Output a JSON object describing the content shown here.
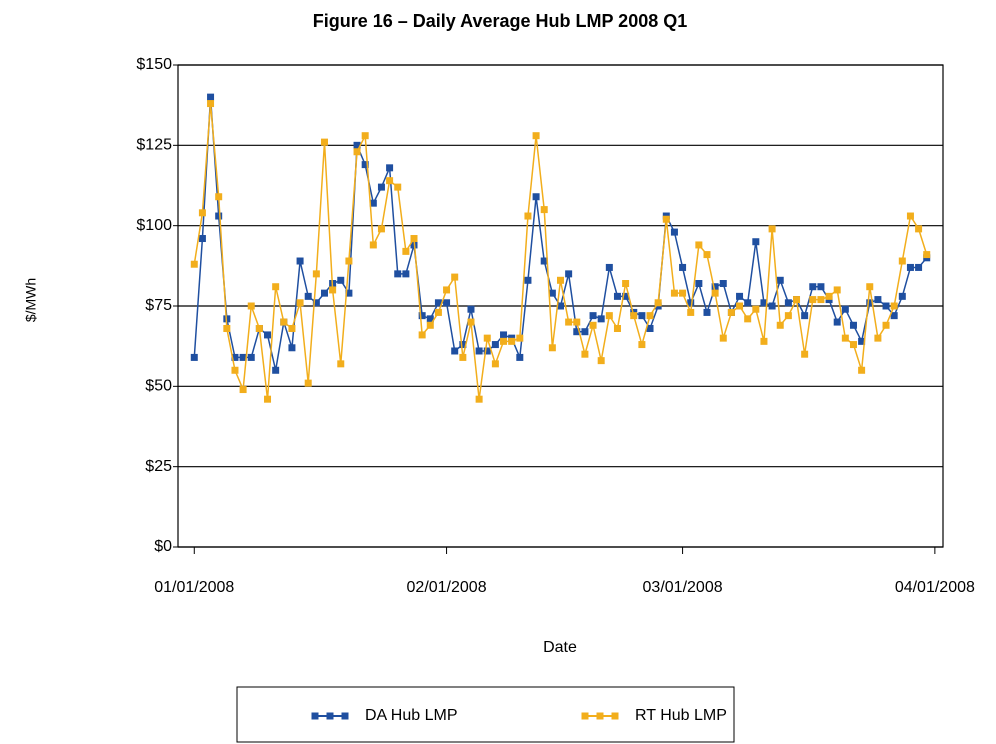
{
  "chart_data": {
    "type": "line",
    "title": "Figure 16 – Daily Average Hub LMP 2008 Q1",
    "x_label": "Date",
    "y_label": "$/MWh",
    "x": [
      "2008-01-01",
      "2008-01-02",
      "2008-01-03",
      "2008-01-04",
      "2008-01-05",
      "2008-01-06",
      "2008-01-07",
      "2008-01-08",
      "2008-01-09",
      "2008-01-10",
      "2008-01-11",
      "2008-01-12",
      "2008-01-13",
      "2008-01-14",
      "2008-01-15",
      "2008-01-16",
      "2008-01-17",
      "2008-01-18",
      "2008-01-19",
      "2008-01-20",
      "2008-01-21",
      "2008-01-22",
      "2008-01-23",
      "2008-01-24",
      "2008-01-25",
      "2008-01-26",
      "2008-01-27",
      "2008-01-28",
      "2008-01-29",
      "2008-01-30",
      "2008-01-31",
      "2008-02-01",
      "2008-02-02",
      "2008-02-03",
      "2008-02-04",
      "2008-02-05",
      "2008-02-06",
      "2008-02-07",
      "2008-02-08",
      "2008-02-09",
      "2008-02-10",
      "2008-02-11",
      "2008-02-12",
      "2008-02-13",
      "2008-02-14",
      "2008-02-15",
      "2008-02-16",
      "2008-02-17",
      "2008-02-18",
      "2008-02-19",
      "2008-02-20",
      "2008-02-21",
      "2008-02-22",
      "2008-02-23",
      "2008-02-24",
      "2008-02-25",
      "2008-02-26",
      "2008-02-27",
      "2008-02-28",
      "2008-02-29",
      "2008-03-01",
      "2008-03-02",
      "2008-03-03",
      "2008-03-04",
      "2008-03-05",
      "2008-03-06",
      "2008-03-07",
      "2008-03-08",
      "2008-03-09",
      "2008-03-10",
      "2008-03-11",
      "2008-03-12",
      "2008-03-13",
      "2008-03-14",
      "2008-03-15",
      "2008-03-16",
      "2008-03-17",
      "2008-03-18",
      "2008-03-19",
      "2008-03-20",
      "2008-03-21",
      "2008-03-22",
      "2008-03-23",
      "2008-03-24",
      "2008-03-25",
      "2008-03-26",
      "2008-03-27",
      "2008-03-28",
      "2008-03-29",
      "2008-03-30",
      "2008-03-31"
    ],
    "series": [
      {
        "name": "DA Hub LMP",
        "color": "#1f4fa0",
        "values": [
          59,
          96,
          140,
          103,
          71,
          59,
          59,
          59,
          68,
          66,
          55,
          70,
          62,
          89,
          78,
          76,
          79,
          82,
          83,
          79,
          125,
          119,
          107,
          112,
          118,
          85,
          85,
          94,
          72,
          71,
          76,
          76,
          61,
          63,
          74,
          61,
          61,
          63,
          66,
          65,
          59,
          83,
          109,
          89,
          79,
          75,
          85,
          67,
          67,
          72,
          71,
          87,
          78,
          78,
          73,
          72,
          68,
          75,
          103,
          98,
          87,
          76,
          82,
          73,
          81,
          82,
          73,
          78,
          76,
          95,
          76,
          75,
          83,
          76,
          77,
          72,
          81,
          81,
          77,
          70,
          74,
          69,
          64,
          76,
          77,
          75,
          72,
          78,
          87,
          87,
          90
        ]
      },
      {
        "name": "RT Hub LMP",
        "color": "#f2ae1c",
        "values": [
          88,
          104,
          138,
          109,
          68,
          55,
          49,
          75,
          68,
          46,
          81,
          70,
          68,
          76,
          51,
          85,
          126,
          80,
          57,
          89,
          123,
          128,
          94,
          99,
          114,
          112,
          92,
          96,
          66,
          69,
          73,
          80,
          84,
          59,
          70,
          46,
          65,
          57,
          64,
          64,
          65,
          103,
          128,
          105,
          62,
          83,
          70,
          70,
          60,
          69,
          58,
          72,
          68,
          82,
          72,
          63,
          72,
          76,
          102,
          79,
          79,
          73,
          94,
          91,
          79,
          65,
          73,
          75,
          71,
          74,
          64,
          99,
          69,
          72,
          77,
          60,
          77,
          77,
          78,
          80,
          65,
          63,
          55,
          81,
          65,
          69,
          75,
          89,
          103,
          99,
          91
        ]
      }
    ],
    "xlim": [
      "2007-12-30",
      "2008-04-02"
    ],
    "xticks": [
      {
        "value": "2008-01-01",
        "label": "01/01/2008"
      },
      {
        "value": "2008-02-01",
        "label": "02/01/2008"
      },
      {
        "value": "2008-03-01",
        "label": "03/01/2008"
      },
      {
        "value": "2008-04-01",
        "label": "04/01/2008"
      }
    ],
    "ylim": [
      0,
      150
    ],
    "yticks": [
      {
        "value": 0,
        "label": "$0"
      },
      {
        "value": 25,
        "label": "$25"
      },
      {
        "value": 50,
        "label": "$50"
      },
      {
        "value": 75,
        "label": "$75"
      },
      {
        "value": 100,
        "label": "$100"
      },
      {
        "value": 125,
        "label": "$125"
      },
      {
        "value": 150,
        "label": "$150"
      }
    ],
    "grid": true,
    "legend": "bottom"
  }
}
